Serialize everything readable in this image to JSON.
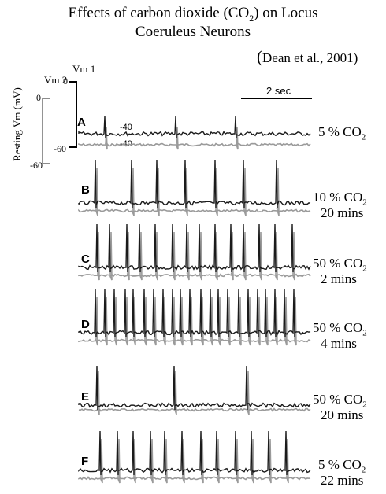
{
  "title_line1": "Effects of carbon dioxide (CO",
  "title_sub": "2",
  "title_line1_end": ") on Locus",
  "title_line2": "Coeruleus Neurons",
  "citation_paren": "(",
  "citation": "Dean et al., 2001)",
  "axis": {
    "resting_label": "Resting Vm (mV)",
    "vm1_label": "Vm 1",
    "vm2_label": "Vm 2",
    "vm1_top": "0",
    "vm1_bottom": "-60",
    "vm2_top": "0",
    "vm2_bottom": "-60",
    "trace_label_a": "-40",
    "trace_label_b": "-40"
  },
  "scale_bar": "2 sec",
  "panels": [
    {
      "letter": "A",
      "co2": "5 % CO",
      "sub": "2",
      "time": "",
      "spikes": 3
    },
    {
      "letter": "B",
      "co2": "10 % CO",
      "sub": "2",
      "time": "20 mins",
      "spikes": 7
    },
    {
      "letter": "C",
      "co2": "50 % CO",
      "sub": "2",
      "time": "2 mins",
      "spikes": 14
    },
    {
      "letter": "D",
      "co2": "50 % CO",
      "sub": "2",
      "time": "4 mins",
      "spikes": 22
    },
    {
      "letter": "E",
      "co2": "50 % CO",
      "sub": "2",
      "time": "20 mins",
      "spikes": 3
    },
    {
      "letter": "F",
      "co2": "5 % CO",
      "sub": "2",
      "time": "22 mins",
      "spikes": 12
    }
  ],
  "colors": {
    "trace_vm1": "#1a1a1a",
    "trace_vm2": "#9a9a9a"
  }
}
